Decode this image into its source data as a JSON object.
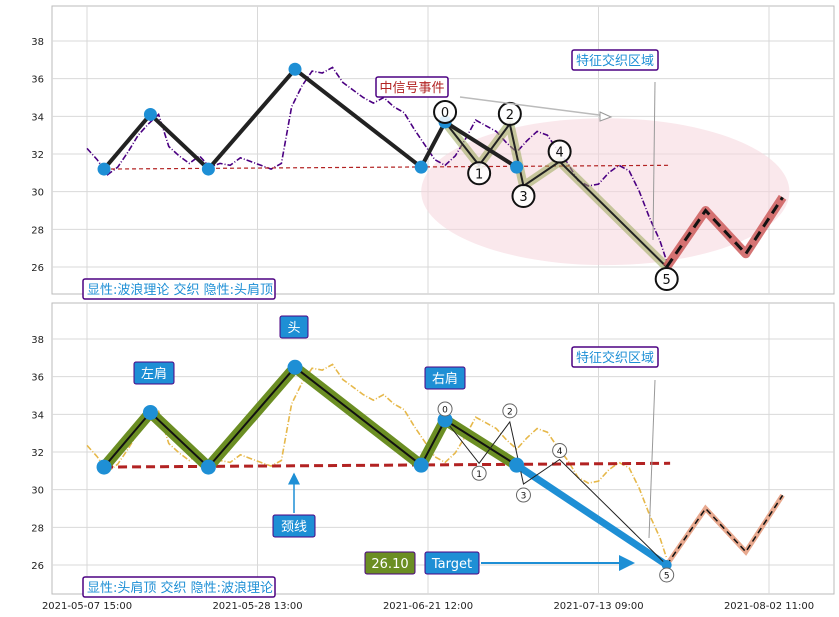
{
  "chart_data": [
    {
      "type": "line",
      "panel": "top",
      "ylim": [
        24.5,
        39.8
      ],
      "yticks": [
        26,
        28,
        30,
        32,
        34,
        36,
        38
      ],
      "grid": true,
      "price_series": {
        "name": "",
        "color": "#4b0082",
        "style": "dash-dot",
        "points": [
          [
            0,
            32.3
          ],
          [
            1.5,
            31.7
          ],
          [
            3,
            30.9
          ],
          [
            4.5,
            31.3
          ],
          [
            6,
            32.1
          ],
          [
            7.5,
            33.0
          ],
          [
            9,
            33.6
          ],
          [
            10.5,
            34.1
          ],
          [
            12,
            32.4
          ],
          [
            13.5,
            31.9
          ],
          [
            15,
            31.5
          ],
          [
            16.5,
            31.9
          ],
          [
            18,
            31.3
          ],
          [
            19.5,
            31.5
          ],
          [
            21,
            31.4
          ],
          [
            22.5,
            31.8
          ],
          [
            24,
            31.6
          ],
          [
            25.5,
            31.4
          ],
          [
            27,
            31.2
          ],
          [
            28.5,
            31.5
          ],
          [
            30,
            34.5
          ],
          [
            31.5,
            35.6
          ],
          [
            33,
            36.4
          ],
          [
            34.5,
            36.3
          ],
          [
            36,
            36.6
          ],
          [
            37.5,
            35.8
          ],
          [
            39,
            35.4
          ],
          [
            40.5,
            35.0
          ],
          [
            42,
            34.7
          ],
          [
            43.5,
            35.0
          ],
          [
            45,
            34.5
          ],
          [
            46.5,
            34.2
          ],
          [
            48,
            33.3
          ],
          [
            49.5,
            32.5
          ],
          [
            51,
            31.7
          ],
          [
            52.5,
            31.4
          ],
          [
            54,
            31.9
          ],
          [
            55.5,
            32.8
          ],
          [
            57,
            33.8
          ],
          [
            58.5,
            33.5
          ],
          [
            60,
            33.2
          ],
          [
            61.5,
            32.6
          ],
          [
            63,
            32.1
          ],
          [
            64.5,
            32.7
          ],
          [
            66,
            33.2
          ],
          [
            67.5,
            33.0
          ],
          [
            69,
            32.2
          ],
          [
            70.5,
            31.5
          ],
          [
            72,
            30.6
          ],
          [
            73.5,
            30.3
          ],
          [
            75,
            30.4
          ],
          [
            76.5,
            31.0
          ],
          [
            78,
            31.4
          ],
          [
            79.5,
            31.1
          ],
          [
            81,
            30.0
          ],
          [
            82.5,
            28.6
          ],
          [
            84,
            27.4
          ],
          [
            85,
            26.3
          ]
        ]
      },
      "hs_pattern": [
        [
          2.5,
          31.2
        ],
        [
          9.3,
          34.1
        ],
        [
          17.8,
          31.2
        ],
        [
          30.5,
          36.5
        ],
        [
          49,
          31.3
        ],
        [
          52.5,
          33.7
        ],
        [
          63,
          31.3
        ],
        [
          85,
          26.0
        ]
      ],
      "wave_pattern": [
        [
          52.5,
          33.7
        ],
        [
          57.5,
          31.4
        ],
        [
          62,
          33.6
        ],
        [
          64,
          30.3
        ],
        [
          69.3,
          31.6
        ],
        [
          85,
          26.0
        ]
      ],
      "wave_labels": [
        "0",
        "1",
        "2",
        "3",
        "4",
        "5"
      ],
      "projection": [
        [
          85,
          26.0
        ],
        [
          90.7,
          29.0
        ],
        [
          96.6,
          26.7
        ],
        [
          102,
          29.7
        ]
      ],
      "neckline": {
        "x": [
          2.5,
          85.5
        ],
        "y": [
          31.2,
          31.4
        ]
      },
      "ellipse": {
        "cx": 76,
        "cy": 30.0,
        "rx": 27,
        "ry": 3.9
      },
      "annotations": {
        "event": "中信号事件",
        "zone": "特征交织区域",
        "footer": "显性:波浪理论 交织 隐性:头肩顶"
      }
    },
    {
      "type": "line",
      "panel": "bottom",
      "ylim": [
        24.5,
        39.8
      ],
      "yticks": [
        26,
        28,
        30,
        32,
        34,
        36,
        38
      ],
      "grid": true,
      "price_series": {
        "name": "",
        "color": "#e6b84a",
        "style": "dash-dot"
      },
      "hs_pattern": [
        [
          2.5,
          31.2
        ],
        [
          9.3,
          34.1
        ],
        [
          17.8,
          31.2
        ],
        [
          30.5,
          36.5
        ],
        [
          49,
          31.3
        ],
        [
          52.5,
          33.7
        ],
        [
          63,
          31.3
        ],
        [
          85,
          26.0
        ]
      ],
      "wave_pattern": [
        [
          52.5,
          33.7
        ],
        [
          57.5,
          31.4
        ],
        [
          62,
          33.6
        ],
        [
          64,
          30.3
        ],
        [
          69.3,
          31.6
        ],
        [
          85,
          26.0
        ]
      ],
      "wave_labels": [
        "0",
        "1",
        "2",
        "3",
        "4",
        "5"
      ],
      "projection": [
        [
          85,
          26.0
        ],
        [
          90.7,
          29.0
        ],
        [
          96.6,
          26.7
        ],
        [
          102,
          29.7
        ]
      ],
      "neckline": {
        "x": [
          2.5,
          85.5
        ],
        "y": [
          31.2,
          31.4
        ]
      },
      "annotations": {
        "left_shoulder": "左肩",
        "head": "头",
        "right_shoulder": "右肩",
        "neckline": "颈线",
        "zone": "特征交织区域",
        "price_box": "26.10",
        "target": "Target",
        "footer": "显性:头肩顶 交织 隐性:波浪理论"
      },
      "xticks": [
        "2021-05-07 15:00",
        "2021-05-28 13:00",
        "2021-06-21 12:00",
        "2021-07-13 09:00",
        "2021-08-02 11:00"
      ],
      "xtick_positions": [
        0,
        25,
        50,
        75,
        100
      ]
    }
  ],
  "colors": {
    "grid": "#cccccc",
    "node_blue": "#1e8fd5",
    "neck_red": "#b22222",
    "hs_green": "#6b8e23",
    "proj_red": "#cd5c5c",
    "label_purple": "#4b0082",
    "ellipse_pink": "#f6d6dc"
  }
}
